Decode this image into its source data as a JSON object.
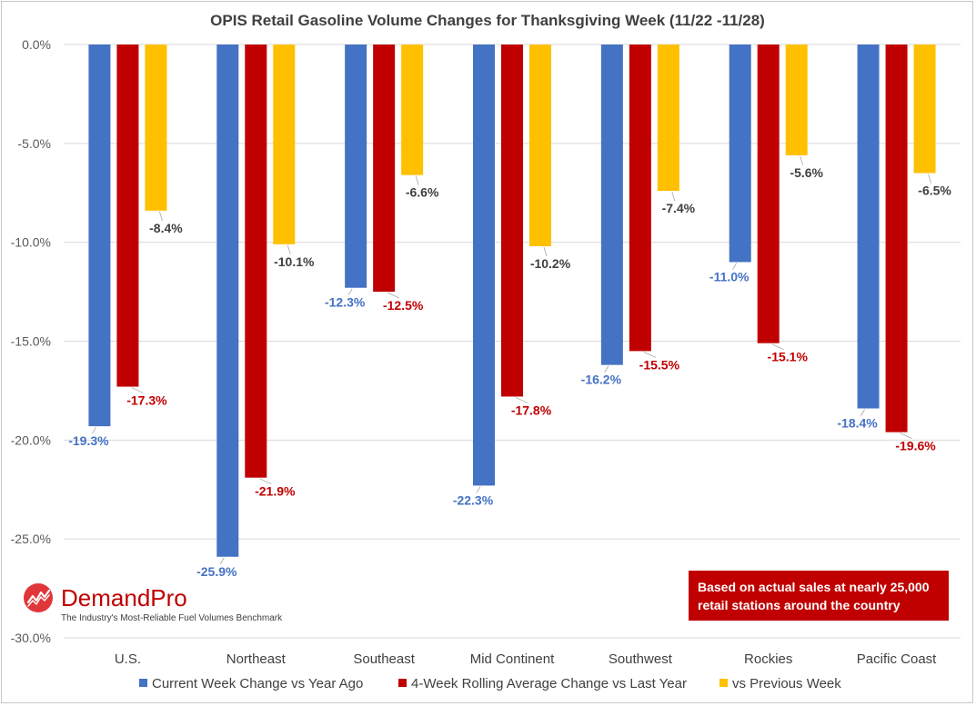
{
  "chart_data": {
    "type": "bar",
    "title": "OPIS Retail Gasoline Volume Changes for Thanksgiving Week (11/22 -11/28)",
    "categories": [
      "U.S.",
      "Northeast",
      "Southeast",
      "Mid Continent",
      "Southwest",
      "Rockies",
      "Pacific Coast"
    ],
    "series": [
      {
        "name": "Current Week Change vs Year Ago",
        "color": "#4472c4",
        "label_color": "#4472c4",
        "values": [
          -19.3,
          -25.9,
          -12.3,
          -22.3,
          -16.2,
          -11.0,
          -18.4
        ],
        "labels": [
          "-19.3%",
          "-25.9%",
          "-12.3%",
          "-22.3%",
          "-16.2%",
          "-11.0%",
          "-18.4%"
        ]
      },
      {
        "name": "4-Week Rolling Average Change vs Last Year",
        "color": "#c00000",
        "label_color": "#c00000",
        "values": [
          -17.3,
          -21.9,
          -12.5,
          -17.8,
          -15.5,
          -15.1,
          -19.6
        ],
        "labels": [
          "-17.3%",
          "-21.9%",
          "-12.5%",
          "-17.8%",
          "-15.5%",
          "-15.1%",
          "-19.6%"
        ]
      },
      {
        "name": "vs Previous Week",
        "color": "#ffc000",
        "label_color": "#404040",
        "values": [
          -8.4,
          -10.1,
          -6.6,
          -10.2,
          -7.4,
          -5.6,
          -6.5
        ],
        "labels": [
          "-8.4%",
          "-10.1%",
          "-6.6%",
          "-10.2%",
          "-7.4%",
          "-5.6%",
          "-6.5%"
        ]
      }
    ],
    "ylim": [
      -30,
      0
    ],
    "yticks": [
      0,
      -5,
      -10,
      -15,
      -20,
      -25,
      -30
    ],
    "ytick_labels": [
      "0.0%",
      "-5.0%",
      "-10.0%",
      "-15.0%",
      "-20.0%",
      "-25.0%",
      "-30.0%"
    ],
    "grid": true,
    "legend_position": "bottom"
  },
  "note": {
    "line1": "Based on actual sales at nearly 25,000",
    "line2": "retail stations around the country"
  },
  "logo": {
    "name": "DemandPro",
    "tagline": "The Industry's Most-Reliable Fuel Volumes Benchmark"
  }
}
